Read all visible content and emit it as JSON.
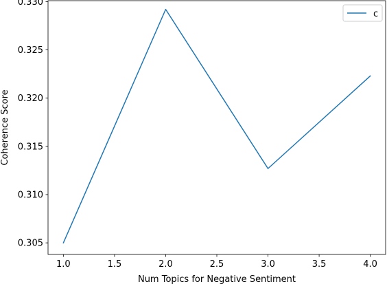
{
  "chart_data": {
    "type": "line",
    "title": "",
    "xlabel": "Num Topics for Negative Sentiment",
    "ylabel": "Coherence Score",
    "xlim": [
      0.85,
      4.15
    ],
    "ylim": [
      0.3038,
      0.3301
    ],
    "xticks": [
      1.0,
      1.5,
      2.0,
      2.5,
      3.0,
      3.5,
      4.0
    ],
    "xtick_labels": [
      "1.0",
      "1.5",
      "2.0",
      "2.5",
      "3.0",
      "3.5",
      "4.0"
    ],
    "yticks": [
      0.305,
      0.31,
      0.315,
      0.32,
      0.325,
      0.33
    ],
    "ytick_labels": [
      "0.305",
      "0.310",
      "0.315",
      "0.320",
      "0.325",
      "0.330"
    ],
    "grid": false,
    "legend": {
      "position": "top-right",
      "entries": [
        "c"
      ]
    },
    "series": [
      {
        "name": "c",
        "color": "#1f77b4",
        "x": [
          1,
          2,
          3,
          4
        ],
        "y": [
          0.305,
          0.3292,
          0.3127,
          0.3223
        ]
      }
    ]
  }
}
